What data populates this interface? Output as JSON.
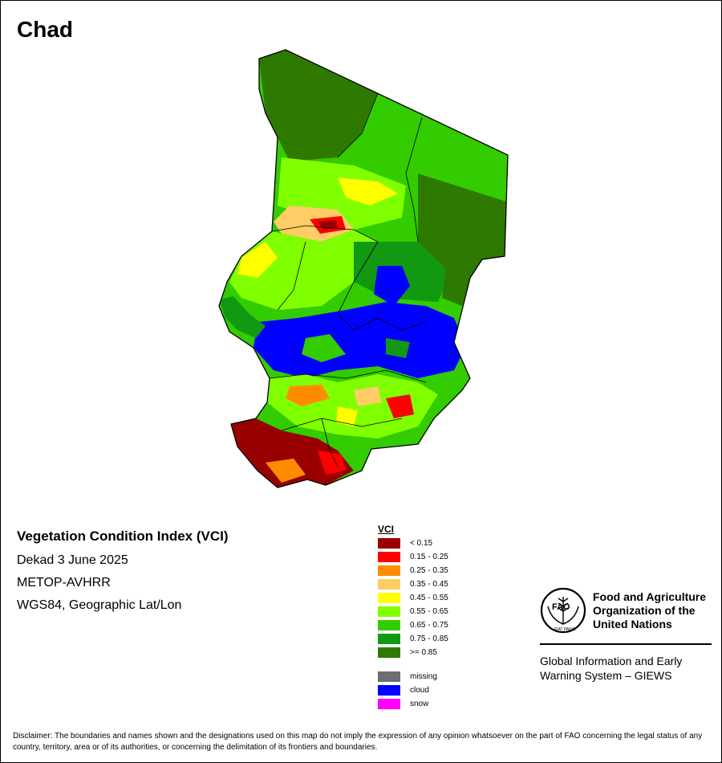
{
  "title": "Chad",
  "info": {
    "index_name": "Vegetation Condition Index (VCI)",
    "period": "Dekad 3 June 2025",
    "sensor": "METOP-AVHRR",
    "projection": "WGS84, Geographic Lat/Lon"
  },
  "legend": {
    "title": "VCI",
    "classes": [
      {
        "label": "< 0.15",
        "color": "#990000"
      },
      {
        "label": "0.15 - 0.25",
        "color": "#ff0000"
      },
      {
        "label": "0.25 - 0.35",
        "color": "#ff8c00"
      },
      {
        "label": "0.35 - 0.45",
        "color": "#ffcc66"
      },
      {
        "label": "0.45 - 0.55",
        "color": "#ffff00"
      },
      {
        "label": "0.55 - 0.65",
        "color": "#80ff00"
      },
      {
        "label": "0.65 - 0.75",
        "color": "#33cc00"
      },
      {
        "label": "0.75 - 0.85",
        "color": "#119911"
      },
      {
        "label": ">= 0.85",
        "color": "#2e7a00"
      }
    ],
    "extras": [
      {
        "label": "missing",
        "color": "#6e6e6e"
      },
      {
        "label": "cloud",
        "color": "#0000ff"
      },
      {
        "label": "snow",
        "color": "#ff00ff"
      }
    ]
  },
  "fao": {
    "org_line1": "Food and Agriculture",
    "org_line2": "Organization of the",
    "org_line3": "United Nations",
    "giews_line1": "Global Information and Early",
    "giews_line2": "Warning System – GIEWS",
    "seal_text": "FIAT PANIS",
    "seal_letters": "FAO"
  },
  "disclaimer": "Disclaimer: The boundaries and names shown and the designations used on this map do not imply the expression of any opinion whatsoever on the part of FAO concerning the legal status of any country, territory, area or of its authorities, or concerning the delimitation of its frontiers and boundaries."
}
